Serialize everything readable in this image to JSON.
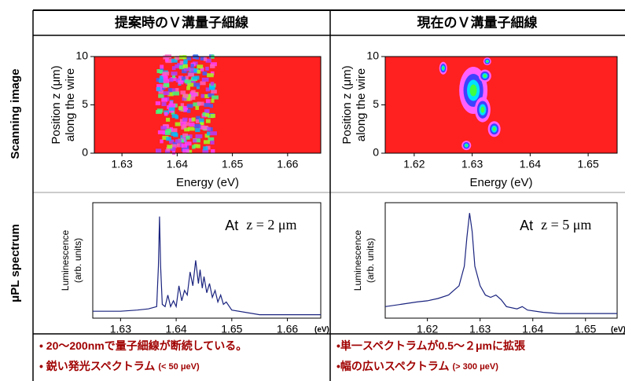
{
  "table": {
    "headers": [
      "提案時のＶ溝量子細線",
      "現在のＶ溝量子細線"
    ],
    "row_labels": [
      "Scanning image",
      "μPL spectrum"
    ],
    "notes": [
      [
        {
          "text": "• 20～200nmで量子細線が断続している。"
        },
        {
          "text": "• 鋭い発光スペクトラム",
          "small": "(< 50 μeV)"
        }
      ],
      [
        {
          "text": "•単一スペクトラムが0.5～２μmに拡張"
        },
        {
          "text": "•幅の広いスペクトラム",
          "small": "(> 300 μeV)"
        }
      ]
    ]
  },
  "chart_data": [
    {
      "type": "heatmap",
      "xlabel": "Energy (eV)",
      "ylabel": [
        "Position z (μm)",
        "along the wire"
      ],
      "xlim": [
        1.625,
        1.666
      ],
      "xticks": [
        1.63,
        1.64,
        1.65,
        1.66
      ],
      "ylim": [
        0,
        10
      ],
      "yticks": [
        0,
        5,
        10
      ]
    },
    {
      "type": "heatmap",
      "xlabel": "Energy (eV)",
      "ylabel": [
        "Position z (μm)",
        "along the wire"
      ],
      "xlim": [
        1.615,
        1.655
      ],
      "xticks": [
        1.62,
        1.63,
        1.64,
        1.65
      ],
      "ylim": [
        0,
        10
      ],
      "yticks": [
        0,
        5,
        10
      ]
    },
    {
      "type": "line",
      "ylabel": [
        "Luminescence",
        "(arb. units)"
      ],
      "annotation": [
        "At",
        "z = 2 μm"
      ],
      "xunit": "(eV)",
      "xlim": [
        1.625,
        1.666
      ],
      "xticks": [
        1.63,
        1.64,
        1.65,
        1.66
      ],
      "ylim": [
        0,
        1
      ],
      "x": [
        1.625,
        1.63,
        1.633,
        1.635,
        1.6365,
        1.6368,
        1.637,
        1.6372,
        1.6375,
        1.638,
        1.6385,
        1.639,
        1.6395,
        1.64,
        1.6405,
        1.641,
        1.6415,
        1.642,
        1.6425,
        1.643,
        1.6435,
        1.644,
        1.6443,
        1.6447,
        1.645,
        1.6455,
        1.646,
        1.6465,
        1.647,
        1.6475,
        1.648,
        1.6485,
        1.649,
        1.65,
        1.655,
        1.66,
        1.666
      ],
      "series": [
        {
          "color": "#1a237e",
          "values": [
            0.06,
            0.06,
            0.07,
            0.08,
            0.1,
            0.45,
            0.88,
            0.45,
            0.12,
            0.1,
            0.2,
            0.1,
            0.15,
            0.1,
            0.28,
            0.15,
            0.24,
            0.2,
            0.4,
            0.28,
            0.5,
            0.3,
            0.42,
            0.26,
            0.36,
            0.22,
            0.3,
            0.18,
            0.24,
            0.14,
            0.2,
            0.12,
            0.14,
            0.07,
            0.03,
            0.03,
            0.03
          ]
        }
      ]
    },
    {
      "type": "line",
      "ylabel": [
        "Luminescence",
        "(arb. units)"
      ],
      "annotation": [
        "At",
        "z = 5 μm"
      ],
      "xunit": "(eV)",
      "xlim": [
        1.612,
        1.656
      ],
      "xticks": [
        1.62,
        1.63,
        1.64,
        1.65
      ],
      "ylim": [
        0,
        1
      ],
      "x": [
        1.612,
        1.615,
        1.618,
        1.62,
        1.622,
        1.624,
        1.626,
        1.627,
        1.6275,
        1.628,
        1.6285,
        1.629,
        1.63,
        1.631,
        1.632,
        1.633,
        1.634,
        1.635,
        1.637,
        1.638,
        1.639,
        1.642,
        1.645,
        1.65,
        1.656
      ],
      "series": [
        {
          "color": "#1a237e",
          "values": [
            0.1,
            0.12,
            0.14,
            0.15,
            0.17,
            0.2,
            0.28,
            0.45,
            0.7,
            0.91,
            0.75,
            0.45,
            0.28,
            0.2,
            0.18,
            0.2,
            0.16,
            0.1,
            0.08,
            0.1,
            0.07,
            0.05,
            0.04,
            0.04,
            0.04
          ]
        }
      ]
    }
  ]
}
